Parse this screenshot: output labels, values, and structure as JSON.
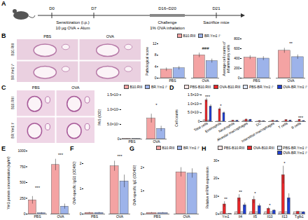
{
  "figure": {
    "panels": [
      "A",
      "B",
      "C",
      "D",
      "E",
      "F",
      "G",
      "H"
    ],
    "timeline": {
      "days": [
        "D0",
        "D7",
        "D16~D20",
        "D21"
      ],
      "sensitization": "Sensitization (i.p.)",
      "dose": "10 μg OVA + Alum",
      "challenge": "Challenge",
      "inhalation": "1% OVA inhalation",
      "end": "Sacrifice mice"
    },
    "histology": [
      {
        "columns": [
          "PBS",
          "OVA"
        ],
        "rows": [
          "B10.RIII",
          "BR.Ym1⁻/⁻"
        ]
      },
      {
        "columns": [
          "PBS",
          "OVA"
        ],
        "rows": [
          "B10.RIII",
          "BR.Ym1⁻/⁻"
        ]
      }
    ]
  },
  "chart_data": [
    {
      "type": "bar",
      "ylabel": "Pathological score",
      "categories": [
        "PBS",
        "OVA"
      ],
      "series": [
        {
          "name": "B10.RIII",
          "color": "#f4a3a3",
          "values": [
            3,
            8
          ],
          "errors": [
            0.6,
            0.8
          ]
        },
        {
          "name": "BR.Ym1⁻/⁻",
          "color": "#9db3ea",
          "values": [
            3.5,
            6
          ],
          "errors": [
            0.6,
            0.7
          ]
        }
      ],
      "ylim": [
        0,
        12
      ],
      "yticks": [
        0,
        4,
        8,
        12
      ],
      "legend": "top-right",
      "annotations": [
        {
          "x": "OVA",
          "y": 10.5,
          "text": "###"
        }
      ]
    },
    {
      "type": "bar",
      "ylabel": "Average cell counts of inflammatory cells",
      "categories": [
        "PBS",
        "OVA"
      ],
      "series": [
        {
          "name": "B10.RIII",
          "color": "#f4a3a3",
          "values": [
            420,
            560
          ],
          "errors": [
            40,
            50
          ]
        },
        {
          "name": "BR.Ym1⁻/⁻",
          "color": "#9db3ea",
          "values": [
            400,
            430
          ],
          "errors": [
            40,
            45
          ]
        }
      ],
      "ylim": [
        0,
        800
      ],
      "yticks": [
        0,
        200,
        400,
        600,
        800
      ],
      "annotations": [
        {
          "x": "OVA",
          "y": 700,
          "text": "**"
        }
      ]
    },
    {
      "type": "bar",
      "ylabel": "PAS (IOD)",
      "categories": [
        "PBS",
        "OVA"
      ],
      "series": [
        {
          "name": "B10.RIII",
          "color": "#f4a3a3",
          "values": [
            1000,
            70000
          ],
          "errors": [
            500,
            15000
          ]
        },
        {
          "name": "BR.Ym1⁻/⁻",
          "color": "#9db3ea",
          "values": [
            800,
            35000
          ],
          "errors": [
            400,
            9000
          ]
        }
      ],
      "ylim": [
        0,
        150000
      ],
      "yticks": [
        0,
        {
          "value": 50000,
          "label": "5.0×10⁴"
        },
        {
          "value": 100000,
          "label": "1.0×10⁵"
        },
        {
          "value": 150000,
          "label": "1.5×10⁵"
        }
      ],
      "legend": "top-right",
      "annotations": [
        {
          "x": "OVA",
          "y": 115000,
          "text": "*"
        }
      ]
    },
    {
      "type": "bar",
      "ylabel": "Cell counts",
      "categories": [
        "Total cells",
        "Eosinophils",
        "Neutrophils",
        "Alveolar macrophages",
        "DC",
        "Interstitial macrophages",
        "T cells",
        "B cells"
      ],
      "series": [
        {
          "name": "PBS-B10.RIII",
          "color": "#fde3e3",
          "values": [
            80000,
            2000,
            3000,
            60000,
            2000,
            5000,
            5000,
            3000
          ],
          "errors": [
            15000,
            1000,
            1000,
            10000,
            1000,
            2000,
            2000,
            1000
          ]
        },
        {
          "name": "OVA-B10.RIII",
          "color": "#e8262a",
          "values": [
            1200000,
            700000,
            60000,
            120000,
            40000,
            50000,
            90000,
            110000
          ],
          "errors": [
            120000,
            90000,
            15000,
            20000,
            10000,
            10000,
            15000,
            20000
          ]
        },
        {
          "name": "PBS-BR.Ym1⁻/⁻",
          "color": "#dde6fa",
          "values": [
            70000,
            2000,
            3000,
            55000,
            2000,
            5000,
            5000,
            3000
          ],
          "errors": [
            15000,
            1000,
            1000,
            10000,
            1000,
            2000,
            2000,
            1000
          ]
        },
        {
          "name": "OVA-BR.Ym1⁻/⁻",
          "color": "#1f3fd1",
          "values": [
            850000,
            480000,
            50000,
            110000,
            30000,
            40000,
            70000,
            40000
          ],
          "errors": [
            100000,
            70000,
            12000,
            20000,
            8000,
            9000,
            12000,
            10000
          ]
        }
      ],
      "ylim": [
        0,
        1500000
      ],
      "yticks": [
        0,
        {
          "value": 500000,
          "label": "5.0×10⁵"
        },
        {
          "value": 1000000,
          "label": "1.0×10⁶"
        },
        {
          "value": 1500000,
          "label": "1.5×10⁶"
        }
      ],
      "legend": "top-right",
      "annotations": [
        {
          "x": "Total cells",
          "y": 1400000,
          "text": "***"
        },
        {
          "x": "Eosinophils",
          "y": 870000,
          "text": "*"
        },
        {
          "x": "B cells",
          "y": 220000,
          "text": "***"
        }
      ]
    },
    {
      "type": "bar",
      "ylabel": "Ym1 protein concentration (ng/ml)",
      "categories": [
        "PBS",
        "OVA"
      ],
      "series": [
        {
          "name": "B10.RIII",
          "color": "#f4a3a3",
          "values": [
            220,
            780
          ],
          "errors": [
            60,
            90
          ]
        },
        {
          "name": "BR.Ym1⁻/⁻",
          "color": "#9db3ea",
          "values": [
            15,
            120
          ],
          "errors": [
            10,
            40
          ]
        }
      ],
      "ylim": [
        0,
        1000
      ],
      "yticks": [
        0,
        250,
        500,
        750,
        1000
      ],
      "annotations": [
        {
          "x": "PBS",
          "y": 420,
          "text": "***"
        },
        {
          "x": "OVA",
          "y": 940,
          "text": "***"
        }
      ]
    },
    {
      "type": "bar",
      "ylabel": "OVA-specific IgG1 (OD450)",
      "categories": [
        "PBS",
        "OVA"
      ],
      "series": [
        {
          "name": "B10.RIII",
          "color": "#f4a3a3",
          "values": [
            0.05,
            1.9
          ],
          "errors": [
            0.02,
            0.2
          ]
        },
        {
          "name": "BR.Ym1⁻/⁻",
          "color": "#9db3ea",
          "values": [
            0.05,
            1.3
          ],
          "errors": [
            0.02,
            0.25
          ]
        }
      ],
      "ylim": [
        0,
        2.5
      ],
      "yticks": [
        0,
        1,
        2
      ],
      "annotations": [
        {
          "x": "OVA",
          "y": 2.3,
          "text": "***"
        }
      ]
    },
    {
      "type": "bar",
      "ylabel": "OVA-specific IgE (OD450)",
      "categories": [
        "PBS",
        "OVA"
      ],
      "series": [
        {
          "name": "B10.RIII",
          "color": "#f4a3a3",
          "values": [
            0.05,
            1.8
          ],
          "errors": [
            0.02,
            0.2
          ]
        },
        {
          "name": "BR.Ym1⁻/⁻",
          "color": "#9db3ea",
          "values": [
            0.05,
            1.75
          ],
          "errors": [
            0.02,
            0.2
          ]
        }
      ],
      "ylim": [
        0,
        2.5
      ],
      "yticks": [
        0,
        1,
        2
      ],
      "legend": "top-right"
    },
    {
      "type": "bar",
      "ylabel": "Relative mRNA expression",
      "categories": [
        "Ym1",
        "Il4",
        "Il5",
        "Il10",
        "Il13",
        "Tgfb1"
      ],
      "series": [
        {
          "name": "PBS-B10.RIII",
          "color": "#fde3e3",
          "values": [
            1,
            1,
            1,
            1,
            1,
            1
          ],
          "errors": [
            0.3,
            0.3,
            0.3,
            0.3,
            0.3,
            0.2
          ]
        },
        {
          "name": "OVA-B10.RIII",
          "color": "#e8262a",
          "values": [
            5.5,
            9,
            8,
            3,
            22,
            1.3
          ],
          "errors": [
            1.5,
            2,
            2,
            0.8,
            5,
            0.3
          ]
        },
        {
          "name": "PBS-BR.Ym1⁻/⁻",
          "color": "#dde6fa",
          "values": [
            0.05,
            1,
            1,
            1,
            1,
            1
          ],
          "errors": [
            0.02,
            0.3,
            0.3,
            0.3,
            0.3,
            0.2
          ]
        },
        {
          "name": "OVA-BR.Ym1⁻/⁻",
          "color": "#1f3fd1",
          "values": [
            0.1,
            5,
            4.5,
            2,
            9,
            1.1
          ],
          "errors": [
            0.05,
            1.2,
            1.2,
            0.5,
            2.5,
            0.3
          ]
        }
      ],
      "ylim": [
        0,
        30
      ],
      "yticks": [
        0,
        10,
        20,
        30
      ],
      "legend": "top-right",
      "annotations": [
        {
          "x": "Ym1",
          "y": 8.5,
          "text": "**"
        },
        {
          "x": "Il4",
          "y": 12.5,
          "text": "**"
        },
        {
          "x": "Il5",
          "y": 11.5,
          "text": "*"
        },
        {
          "x": "Il10",
          "y": 5,
          "text": "*"
        },
        {
          "x": "Il13",
          "y": 28.5,
          "text": "*"
        }
      ]
    }
  ]
}
